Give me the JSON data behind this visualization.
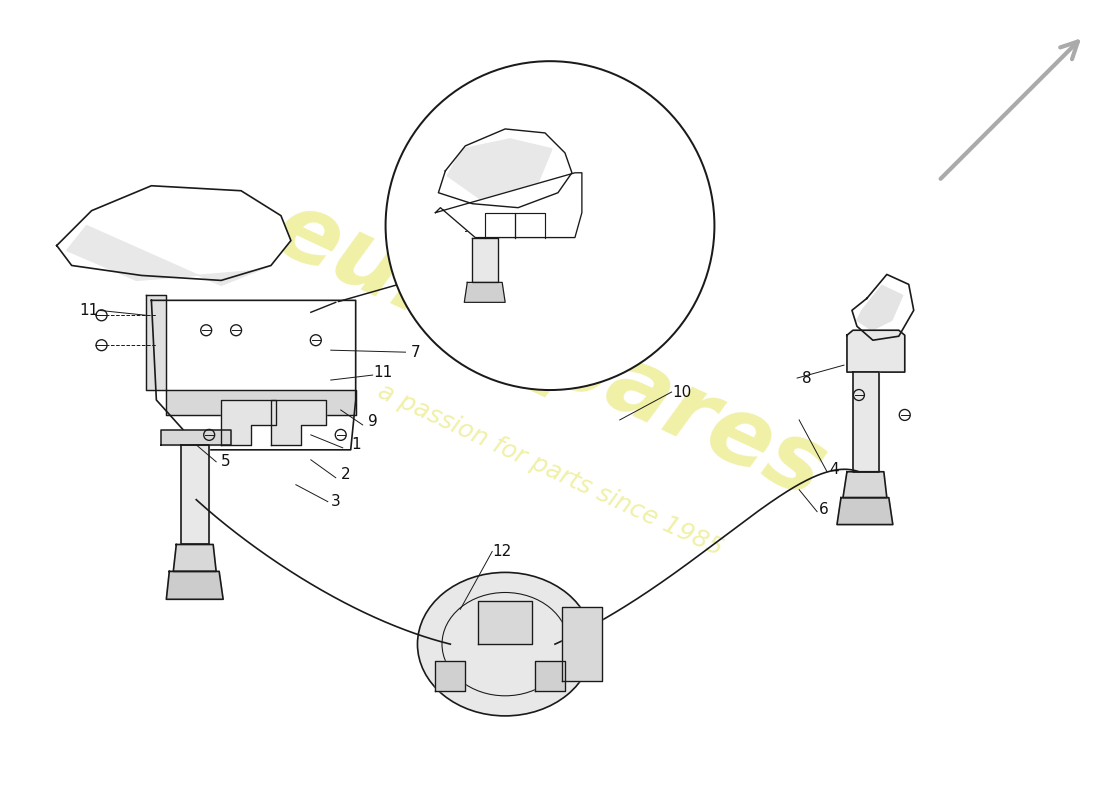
{
  "background_color": "#ffffff",
  "fig_width": 11.0,
  "fig_height": 8.0,
  "watermark_text1": "eurospares",
  "watermark_text2": "a passion for parts since 1985",
  "watermark_color": "#d4d400",
  "watermark_alpha": 0.35,
  "line_color": "#1a1a1a",
  "line_width": 1.2,
  "part_labels": [
    [
      3.55,
      3.55,
      "1"
    ],
    [
      3.45,
      3.25,
      "2"
    ],
    [
      3.35,
      2.98,
      "3"
    ],
    [
      8.35,
      3.3,
      "4"
    ],
    [
      2.25,
      3.38,
      "5"
    ],
    [
      8.25,
      2.9,
      "6"
    ],
    [
      4.15,
      4.48,
      "7"
    ],
    [
      8.08,
      4.22,
      "8"
    ],
    [
      3.72,
      3.78,
      "9"
    ],
    [
      6.82,
      4.08,
      "10"
    ],
    [
      0.87,
      4.9,
      "11"
    ],
    [
      3.82,
      4.28,
      "11"
    ],
    [
      5.02,
      2.48,
      "12"
    ]
  ],
  "leader_lines": [
    [
      3.42,
      3.52,
      3.1,
      3.65
    ],
    [
      3.35,
      3.22,
      3.1,
      3.4
    ],
    [
      3.27,
      2.98,
      2.95,
      3.15
    ],
    [
      8.28,
      3.28,
      8.0,
      3.8
    ],
    [
      2.15,
      3.38,
      1.95,
      3.55
    ],
    [
      8.18,
      2.88,
      8.0,
      3.1
    ],
    [
      4.05,
      4.48,
      3.3,
      4.5
    ],
    [
      7.98,
      4.22,
      8.45,
      4.35
    ],
    [
      3.62,
      3.75,
      3.4,
      3.9
    ],
    [
      6.72,
      4.08,
      6.2,
      3.8
    ],
    [
      0.97,
      4.9,
      1.45,
      4.85
    ],
    [
      3.72,
      4.25,
      3.3,
      4.2
    ],
    [
      4.92,
      2.48,
      4.6,
      1.9
    ]
  ]
}
